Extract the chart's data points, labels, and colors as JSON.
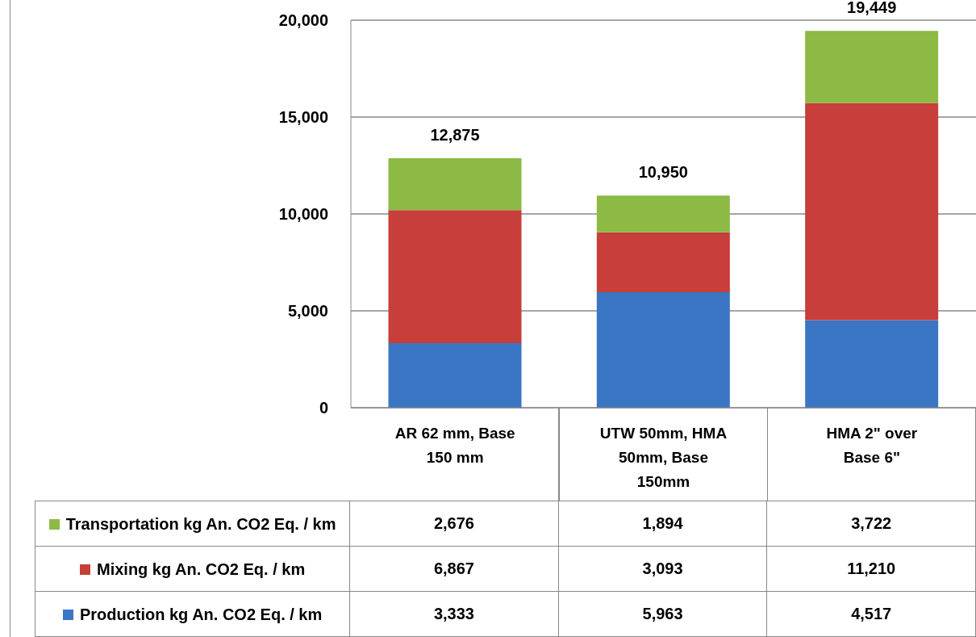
{
  "chart_data": {
    "type": "bar",
    "stacked": true,
    "categories": [
      "AR 62 mm, Base 150 mm",
      "UTW 50mm, HMA 50mm, Base 150mm",
      "HMA 2\" over Base 6\""
    ],
    "series": [
      {
        "name": "Production kg An. CO2 Eq. / km",
        "color": "#3a76c4",
        "values": [
          3333,
          5963,
          4517
        ],
        "value_labels": [
          "3,333",
          "5,963",
          "4,517"
        ]
      },
      {
        "name": "Mixing kg An. CO2 Eq. / km",
        "color": "#c73e3a",
        "values": [
          6867,
          3093,
          11210
        ],
        "value_labels": [
          "6,867",
          "3,093",
          "11,210"
        ]
      },
      {
        "name": "Transportation kg An. CO2 Eq. / km",
        "color": "#8cba45",
        "values": [
          2676,
          1894,
          3722
        ],
        "value_labels": [
          "2,676",
          "1,894",
          "3,722"
        ]
      }
    ],
    "totals": [
      "12,875",
      "10,950",
      "19,449"
    ],
    "ylim": [
      0,
      20000
    ],
    "yticks": [
      0,
      {
        "value": 5000,
        "label": "5,000"
      },
      {
        "value": 10000,
        "label": "10,000"
      },
      {
        "value": 15000,
        "label": "15,000"
      },
      {
        "value": 20000,
        "label": "20,000"
      }
    ],
    "grid": "y",
    "legend": "bottom"
  }
}
